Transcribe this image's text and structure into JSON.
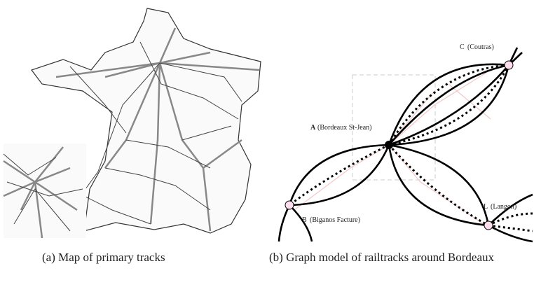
{
  "caption_a": "(a) Map of primary tracks",
  "caption_b": "(b) Graph model of railtracks around Bordeaux",
  "nodes": [
    {
      "key": "A",
      "name": "(Bordeaux St-Jean)"
    },
    {
      "key": "B",
      "name": "(Biganos Facture)"
    },
    {
      "key": "C",
      "name": "(Coutras)"
    },
    {
      "key": "L",
      "name": "(Langon)"
    }
  ]
}
